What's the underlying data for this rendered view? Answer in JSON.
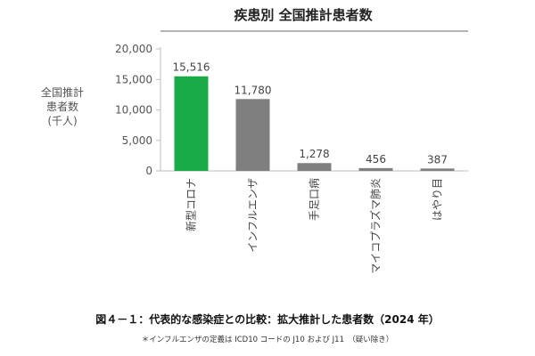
{
  "chart_data": {
    "type": "bar",
    "title": "疾患別 全国推計患者数",
    "ylabel": "全国推計\n患者数\n(千人)",
    "xlabel": "",
    "categories": [
      "新型コロナ",
      "インフルエンザ",
      "手足口病",
      "マイコプラズマ肺炎",
      "はやり目"
    ],
    "values": [
      15516,
      11780,
      1278,
      456,
      387
    ],
    "value_labels": [
      "15,516",
      "11,780",
      "1,278",
      "456",
      "387"
    ],
    "ylim": [
      0,
      20000
    ],
    "yticks": [
      0,
      5000,
      10000,
      15000,
      20000
    ],
    "ytick_labels": [
      "0",
      "5,000",
      "10,000",
      "15,000",
      "20,000"
    ],
    "grid": false,
    "colors": [
      "#1aaa48",
      "#7f7f7f",
      "#7f7f7f",
      "#7f7f7f",
      "#7f7f7f"
    ],
    "axis_color": "#bfbfbf"
  },
  "caption": "図４－１：代表的な感染症との比較：拡大推計した患者数（2024 年）",
  "note": "＊インフルエンザの定義は ICD10 コードの J10 および J11　（疑い除き）"
}
